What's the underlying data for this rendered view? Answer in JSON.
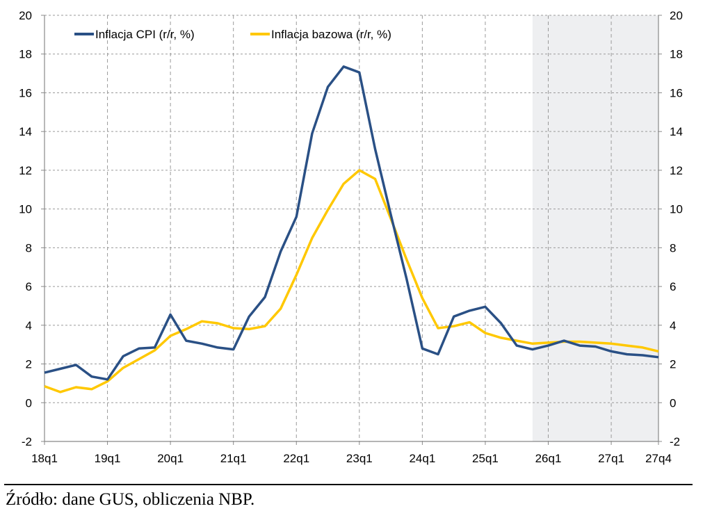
{
  "chart_data": {
    "type": "line",
    "title": "",
    "xlabel": "",
    "ylabel": "",
    "ylim": [
      -2,
      20
    ],
    "yticks": [
      -2,
      0,
      2,
      4,
      6,
      8,
      10,
      12,
      14,
      16,
      18,
      20
    ],
    "x_tick_labels": [
      "18q1",
      "19q1",
      "20q1",
      "21q1",
      "22q1",
      "23q1",
      "24q1",
      "25q1",
      "26q1",
      "27q1",
      "27q4"
    ],
    "x": [
      "18q1",
      "18q2",
      "18q3",
      "18q4",
      "19q1",
      "19q2",
      "19q3",
      "19q4",
      "20q1",
      "20q2",
      "20q3",
      "20q4",
      "21q1",
      "21q2",
      "21q3",
      "21q4",
      "22q1",
      "22q2",
      "22q3",
      "22q4",
      "23q1",
      "23q2",
      "23q3",
      "23q4",
      "24q1",
      "24q2",
      "24q3",
      "24q4",
      "25q1",
      "25q2",
      "25q3",
      "25q4",
      "26q1",
      "26q2",
      "26q3",
      "26q4",
      "27q1",
      "27q2",
      "27q3",
      "27q4"
    ],
    "grid": true,
    "legend_position": "top",
    "forecast_shaded_range": [
      "25q4",
      "27q4"
    ],
    "series": [
      {
        "name": "Inflacja CPI (r/r, %)",
        "color": "#2a5085",
        "values": [
          1.55,
          1.75,
          1.95,
          1.35,
          1.2,
          2.4,
          2.8,
          2.85,
          4.55,
          3.2,
          3.05,
          2.85,
          2.75,
          4.45,
          5.45,
          7.8,
          9.6,
          13.9,
          16.3,
          17.35,
          17.05,
          13.1,
          9.7,
          6.4,
          2.8,
          2.5,
          4.45,
          4.75,
          4.95,
          4.1,
          2.95,
          2.75,
          2.95,
          3.2,
          2.95,
          2.9,
          2.65,
          2.5,
          2.45,
          2.35
        ]
      },
      {
        "name": "Inflacja bazowa (r/r, %)",
        "color": "#ffc800",
        "values": [
          0.85,
          0.55,
          0.8,
          0.7,
          1.1,
          1.8,
          2.25,
          2.7,
          3.45,
          3.8,
          4.2,
          4.1,
          3.85,
          3.8,
          3.95,
          4.85,
          6.6,
          8.5,
          9.95,
          11.3,
          12.0,
          11.55,
          9.5,
          7.4,
          5.4,
          3.85,
          3.95,
          4.15,
          3.6,
          3.35,
          3.2,
          3.05,
          3.1,
          3.15,
          3.15,
          3.1,
          3.05,
          2.95,
          2.85,
          2.65
        ]
      }
    ],
    "shade_color": "#eeeff1"
  },
  "source": "Źródło: dane GUS, obliczenia NBP."
}
